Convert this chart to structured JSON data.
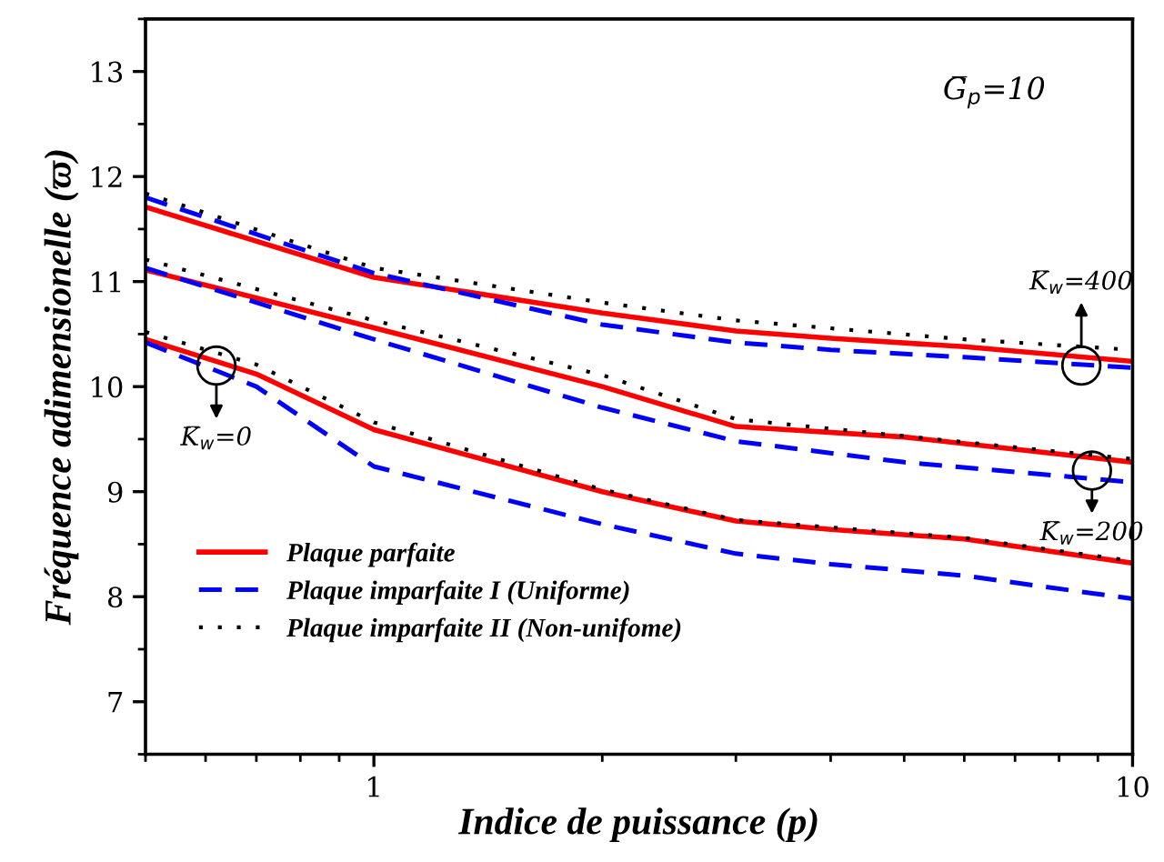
{
  "chart_data": {
    "type": "line",
    "xlabel": "Indice de puissance (p)",
    "ylabel": "Fréquence adimensionelle (ϖ)",
    "log": "x",
    "xlim": [
      0.5,
      10
    ],
    "xticks": [
      1,
      10
    ],
    "ylim": [
      6.5,
      13.5
    ],
    "yticks": [
      7,
      8,
      9,
      10,
      11,
      12,
      13
    ],
    "grid": false,
    "legend": "bottom left",
    "annotations": [
      "G̅$_{p}$=10",
      {
        "text": "K̅$_{w}$=400",
        "x": 8.56,
        "y": 10.2
      },
      {
        "text": "K̅$_{w}$=200",
        "x": 8.84,
        "y": 9.2
      },
      {
        "text": "K̅$_{w}$=0",
        "x": 0.62,
        "y": 10.2
      }
    ],
    "series": [
      {
        "name": "Plaque parfaite",
        "color": "#ff0000",
        "line_style": "solid",
        "x": [
          0.5,
          1,
          2,
          3,
          4,
          6,
          10
        ],
        "values": [
          11.71,
          11.04,
          10.7,
          10.53,
          10.46,
          10.38,
          10.24
        ]
      },
      {
        "name": "Plaque imparfaite I (Uniforme)",
        "color": "#0000ff",
        "line_style": "dashed",
        "x": [
          0.5,
          1,
          2,
          3,
          4,
          6,
          10
        ],
        "values": [
          11.8,
          11.08,
          10.59,
          10.42,
          10.35,
          10.28,
          10.18
        ]
      },
      {
        "name": "Plaque imparfaite II (Non-unifome)",
        "color": "#000000",
        "line_style": "dotted",
        "x": [
          0.5,
          1,
          2,
          3,
          6,
          10
        ],
        "values": [
          11.84,
          11.13,
          10.8,
          10.63,
          10.45,
          10.35
        ]
      },
      {
        "color": "#ff0000",
        "line_style": "solid",
        "x": [
          0.5,
          1,
          2,
          3,
          5,
          10
        ],
        "values": [
          11.11,
          10.56,
          10.0,
          9.62,
          9.52,
          9.28
        ]
      },
      {
        "color": "#0000ff",
        "line_style": "dashed",
        "x": [
          0.5,
          1,
          2,
          3,
          5,
          10
        ],
        "values": [
          11.13,
          10.45,
          9.8,
          9.48,
          9.28,
          9.09
        ]
      },
      {
        "color": "#000000",
        "line_style": "dotted",
        "x": [
          0.5,
          1,
          2,
          3,
          10
        ],
        "values": [
          11.21,
          10.63,
          10.11,
          9.69,
          9.31
        ]
      },
      {
        "color": "#ff0000",
        "line_style": "solid",
        "x": [
          0.5,
          0.7,
          1,
          2,
          3,
          4,
          6,
          10
        ],
        "values": [
          10.45,
          10.12,
          9.59,
          9.0,
          8.72,
          8.64,
          8.55,
          8.32
        ]
      },
      {
        "color": "#0000ff",
        "line_style": "dashed",
        "x": [
          0.5,
          0.7,
          1,
          2,
          3,
          4,
          6,
          10
        ],
        "values": [
          10.42,
          10.0,
          9.24,
          8.69,
          8.41,
          8.31,
          8.2,
          7.98
        ]
      },
      {
        "color": "#000000",
        "line_style": "dotted",
        "x": [
          0.5,
          0.7,
          1,
          2,
          3,
          6,
          10
        ],
        "values": [
          10.52,
          10.21,
          9.66,
          9.02,
          8.73,
          8.56,
          8.34
        ]
      }
    ]
  }
}
